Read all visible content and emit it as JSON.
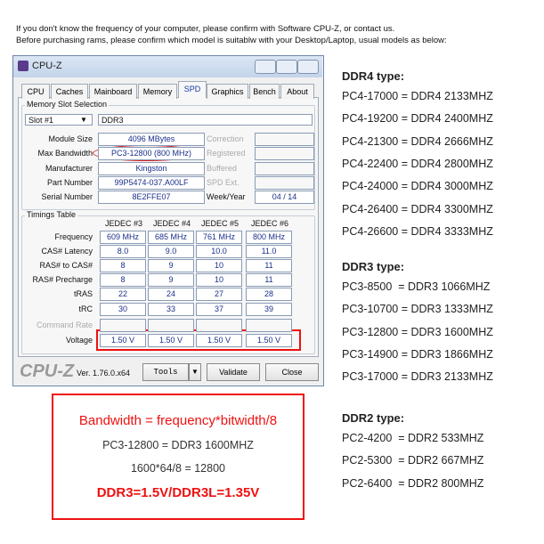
{
  "header": {
    "lines": [
      "If you don't know the frequency of your computer, please confirm with Software CPU-Z, or contact us.",
      "Before purchasing rams, please confirm which model is suitablw with your Desktop/Laptop, usual models as below:"
    ]
  },
  "cpuz": {
    "title": "CPU-Z",
    "tabs": [
      "CPU",
      "Caches",
      "Mainboard",
      "Memory",
      "SPD",
      "Graphics",
      "Bench",
      "About"
    ],
    "slot_group": "Memory Slot Selection",
    "slot": "Slot #1",
    "memory_type": "DDR3",
    "fields": [
      {
        "label": "Module Size",
        "value": "4096 MBytes",
        "side_label": "Correction"
      },
      {
        "label": "Max Bandwidth",
        "value": "PC3-12800 (800 MHz)",
        "side_label": "Registered"
      },
      {
        "label": "Manufacturer",
        "value": "Kingston",
        "side_label": "Buffered"
      },
      {
        "label": "Part Number",
        "value": "99P5474-037.A00LF",
        "side_label": "SPD Ext."
      },
      {
        "label": "Serial Number",
        "value": "8E2FFE07",
        "side_label": "Week/Year",
        "side_value": "04 / 14"
      }
    ],
    "timings_group": "Timings Table",
    "columns": [
      "JEDEC #3",
      "JEDEC #4",
      "JEDEC #5",
      "JEDEC #6"
    ],
    "rows": [
      {
        "label": "Frequency",
        "values": [
          "609 MHz",
          "685 MHz",
          "761 MHz",
          "800 MHz"
        ]
      },
      {
        "label": "CAS# Latency",
        "values": [
          "8.0",
          "9.0",
          "10.0",
          "11.0"
        ]
      },
      {
        "label": "RAS# to CAS#",
        "values": [
          "8",
          "9",
          "10",
          "11"
        ]
      },
      {
        "label": "RAS# Precharge",
        "values": [
          "8",
          "9",
          "10",
          "11"
        ]
      },
      {
        "label": "tRAS",
        "values": [
          "22",
          "24",
          "27",
          "28"
        ]
      },
      {
        "label": "tRC",
        "values": [
          "30",
          "33",
          "37",
          "39"
        ]
      },
      {
        "label": "Command Rate"
      },
      {
        "label": "Voltage",
        "values": [
          "1.50 V",
          "1.50 V",
          "1.50 V",
          "1.50 V"
        ]
      }
    ],
    "logo": "CPU-Z",
    "version": "Ver. 1.76.0.x64",
    "buttons": [
      "Tools",
      "Validate",
      "Close"
    ]
  },
  "note": {
    "lines": [
      "Bandwidth = frequency*bitwidth/8",
      "PC3-12800 = DDR3 1600MHZ",
      "1600*64/8 = 12800",
      "DDR3=1.5V/DDR3L=1.35V"
    ]
  },
  "types": [
    {
      "title": "DDR4 type:",
      "items": [
        "PC4-17000 = DDR4 2133MHZ",
        "PC4-19200 = DDR4 2400MHZ",
        "PC4-21300 = DDR4 2666MHZ",
        "PC4-22400 = DDR4 2800MHZ",
        "PC4-24000 = DDR4 3000MHZ",
        "PC4-26400 = DDR4 3300MHZ",
        "PC4-26600 = DDR4 3333MHZ"
      ]
    },
    {
      "title": "DDR3 type:",
      "items": [
        "PC3-8500  = DDR3 1066MHZ",
        "PC3-10700 = DDR3 1333MHZ",
        "PC3-12800 = DDR3 1600MHZ",
        "PC3-14900 = DDR3 1866MHZ",
        "PC3-17000 = DDR3 2133MHZ"
      ]
    },
    {
      "title": "DDR2 type:",
      "items": [
        "PC2-4200  = DDR2 533MHZ",
        "PC2-5300  = DDR2 667MHZ",
        "PC2-6400  = DDR2 800MHZ"
      ]
    }
  ]
}
